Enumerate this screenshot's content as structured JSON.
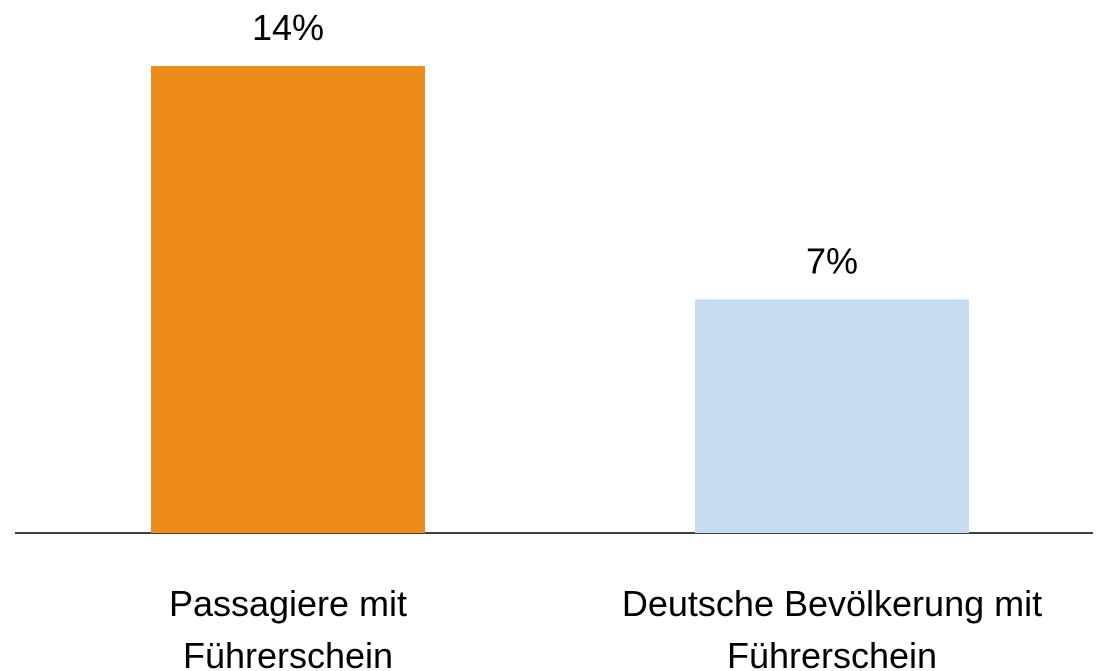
{
  "chart_data": {
    "type": "bar",
    "categories": [
      "Passagiere mit\nFührerschein",
      "Deutsche Bevölkerung mit\nFührerschein"
    ],
    "values": [
      14,
      7
    ],
    "value_labels": [
      "14%",
      "7%"
    ],
    "colors": [
      "#ed8b1a",
      "#c6dbef"
    ]
  }
}
